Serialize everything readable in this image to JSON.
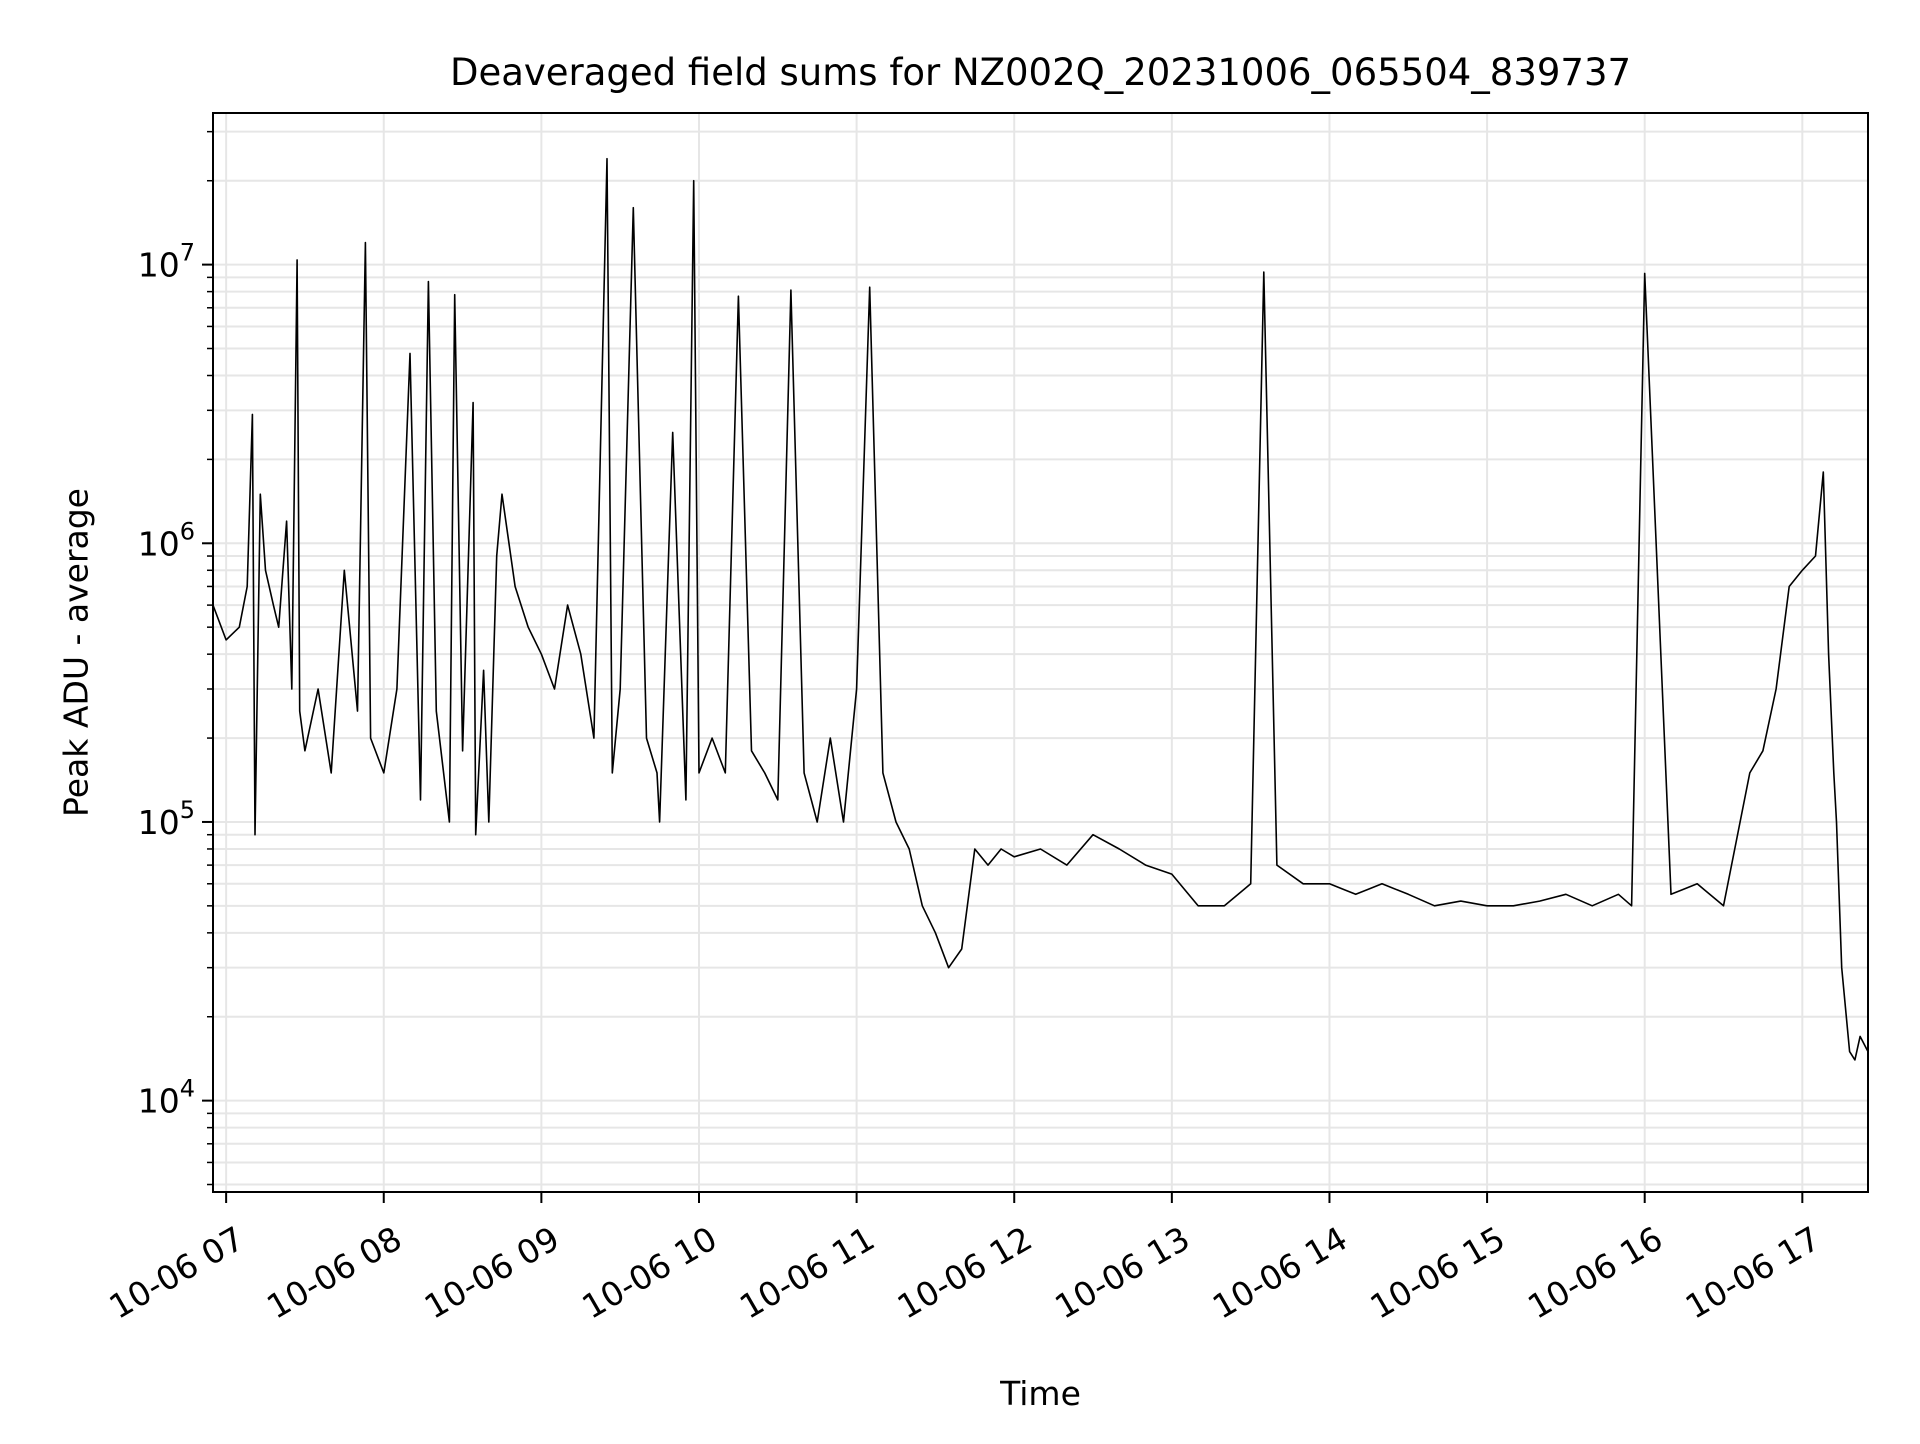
{
  "chart_data": {
    "type": "line",
    "title": "Deaveraged field sums for NZ002Q_20231006_065504_839737",
    "xlabel": "Time",
    "ylabel": "Peak ADU - average",
    "x_scale": "time",
    "y_scale": "log",
    "xlim": [
      "2023-10-06 06:55",
      "2023-10-06 17:25"
    ],
    "ylim": [
      4700,
      35000000
    ],
    "grid": true,
    "x_ticks": [
      "2023-10-06 07:00",
      "2023-10-06 08:00",
      "2023-10-06 09:00",
      "2023-10-06 10:00",
      "2023-10-06 11:00",
      "2023-10-06 12:00",
      "2023-10-06 13:00",
      "2023-10-06 14:00",
      "2023-10-06 15:00",
      "2023-10-06 16:00",
      "2023-10-06 17:00"
    ],
    "x_tick_labels": [
      "10-06 07",
      "10-06 08",
      "10-06 09",
      "10-06 10",
      "10-06 11",
      "10-06 12",
      "10-06 13",
      "10-06 14",
      "10-06 15",
      "10-06 16",
      "10-06 17"
    ],
    "y_ticks": [
      10000,
      100000,
      1000000,
      10000000
    ],
    "y_tick_labels": [
      {
        "base": "10",
        "exp": "4"
      },
      {
        "base": "10",
        "exp": "5"
      },
      {
        "base": "10",
        "exp": "6"
      },
      {
        "base": "10",
        "exp": "7"
      }
    ],
    "series": [
      {
        "color": "#000000",
        "x": [
          "2023-10-06 06:55",
          "2023-10-06 07:00",
          "2023-10-06 07:05",
          "2023-10-06 07:08",
          "2023-10-06 07:10",
          "2023-10-06 07:11",
          "2023-10-06 07:13",
          "2023-10-06 07:15",
          "2023-10-06 07:18",
          "2023-10-06 07:20",
          "2023-10-06 07:23",
          "2023-10-06 07:25",
          "2023-10-06 07:27",
          "2023-10-06 07:28",
          "2023-10-06 07:30",
          "2023-10-06 07:35",
          "2023-10-06 07:40",
          "2023-10-06 07:45",
          "2023-10-06 07:50",
          "2023-10-06 07:53",
          "2023-10-06 07:55",
          "2023-10-06 08:00",
          "2023-10-06 08:05",
          "2023-10-06 08:10",
          "2023-10-06 08:14",
          "2023-10-06 08:17",
          "2023-10-06 08:20",
          "2023-10-06 08:25",
          "2023-10-06 08:27",
          "2023-10-06 08:30",
          "2023-10-06 08:34",
          "2023-10-06 08:35",
          "2023-10-06 08:38",
          "2023-10-06 08:40",
          "2023-10-06 08:43",
          "2023-10-06 08:45",
          "2023-10-06 08:50",
          "2023-10-06 08:55",
          "2023-10-06 09:00",
          "2023-10-06 09:05",
          "2023-10-06 09:10",
          "2023-10-06 09:15",
          "2023-10-06 09:20",
          "2023-10-06 09:25",
          "2023-10-06 09:27",
          "2023-10-06 09:30",
          "2023-10-06 09:35",
          "2023-10-06 09:40",
          "2023-10-06 09:44",
          "2023-10-06 09:45",
          "2023-10-06 09:50",
          "2023-10-06 09:55",
          "2023-10-06 09:58",
          "2023-10-06 10:00",
          "2023-10-06 10:05",
          "2023-10-06 10:10",
          "2023-10-06 10:15",
          "2023-10-06 10:20",
          "2023-10-06 10:25",
          "2023-10-06 10:30",
          "2023-10-06 10:35",
          "2023-10-06 10:40",
          "2023-10-06 10:45",
          "2023-10-06 10:50",
          "2023-10-06 10:55",
          "2023-10-06 11:00",
          "2023-10-06 11:05",
          "2023-10-06 11:10",
          "2023-10-06 11:15",
          "2023-10-06 11:20",
          "2023-10-06 11:25",
          "2023-10-06 11:30",
          "2023-10-06 11:35",
          "2023-10-06 11:40",
          "2023-10-06 11:45",
          "2023-10-06 11:50",
          "2023-10-06 11:55",
          "2023-10-06 12:00",
          "2023-10-06 12:10",
          "2023-10-06 12:20",
          "2023-10-06 12:30",
          "2023-10-06 12:40",
          "2023-10-06 12:50",
          "2023-10-06 13:00",
          "2023-10-06 13:10",
          "2023-10-06 13:20",
          "2023-10-06 13:30",
          "2023-10-06 13:35",
          "2023-10-06 13:40",
          "2023-10-06 13:50",
          "2023-10-06 14:00",
          "2023-10-06 14:10",
          "2023-10-06 14:20",
          "2023-10-06 14:30",
          "2023-10-06 14:40",
          "2023-10-06 14:50",
          "2023-10-06 15:00",
          "2023-10-06 15:10",
          "2023-10-06 15:20",
          "2023-10-06 15:30",
          "2023-10-06 15:40",
          "2023-10-06 15:50",
          "2023-10-06 15:55",
          "2023-10-06 16:00",
          "2023-10-06 16:10",
          "2023-10-06 16:20",
          "2023-10-06 16:30",
          "2023-10-06 16:40",
          "2023-10-06 16:45",
          "2023-10-06 16:50",
          "2023-10-06 16:55",
          "2023-10-06 17:00",
          "2023-10-06 17:05",
          "2023-10-06 17:08",
          "2023-10-06 17:10",
          "2023-10-06 17:12",
          "2023-10-06 17:13",
          "2023-10-06 17:15",
          "2023-10-06 17:18",
          "2023-10-06 17:20",
          "2023-10-06 17:22",
          "2023-10-06 17:25"
        ],
        "y": [
          600000,
          450000,
          500000,
          700000,
          2900000,
          90000,
          1500000,
          800000,
          600000,
          500000,
          1200000,
          300000,
          10400000,
          250000,
          180000,
          300000,
          150000,
          800000,
          250000,
          12000000,
          200000,
          150000,
          300000,
          4800000,
          120000,
          8700000,
          250000,
          100000,
          7800000,
          180000,
          3200000,
          90000,
          350000,
          100000,
          900000,
          1500000,
          700000,
          500000,
          400000,
          300000,
          600000,
          400000,
          200000,
          24000000,
          150000,
          300000,
          16000000,
          200000,
          150000,
          100000,
          2500000,
          120000,
          20000000,
          150000,
          200000,
          150000,
          7700000,
          180000,
          150000,
          120000,
          8100000,
          150000,
          100000,
          200000,
          100000,
          300000,
          8300000,
          150000,
          100000,
          80000,
          50000,
          40000,
          30000,
          35000,
          80000,
          70000,
          80000,
          75000,
          80000,
          70000,
          90000,
          80000,
          70000,
          65000,
          50000,
          50000,
          60000,
          9400000,
          70000,
          60000,
          60000,
          55000,
          60000,
          55000,
          50000,
          52000,
          50000,
          50000,
          52000,
          55000,
          50000,
          55000,
          50000,
          9300000,
          55000,
          60000,
          50000,
          150000,
          180000,
          300000,
          700000,
          800000,
          900000,
          1800000,
          400000,
          150000,
          100000,
          30000,
          15000,
          14000,
          17000,
          15000
        ]
      }
    ]
  }
}
